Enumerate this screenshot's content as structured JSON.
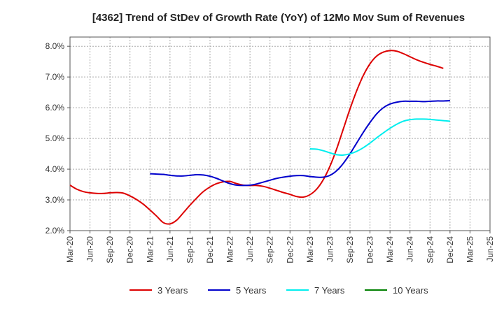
{
  "chart_data": {
    "type": "line",
    "title": "[4362]  Trend of StDev of Growth Rate (YoY) of 12Mo Mov Sum of Revenues",
    "xlabel": "",
    "ylabel": "",
    "ylim": [
      2.0,
      8.3
    ],
    "y_ticks": [
      2.0,
      3.0,
      4.0,
      5.0,
      6.0,
      7.0,
      8.0
    ],
    "y_tick_labels": [
      "2.0%",
      "3.0%",
      "4.0%",
      "5.0%",
      "6.0%",
      "7.0%",
      "8.0%"
    ],
    "x_ticks": [
      "Mar-20",
      "Jun-20",
      "Sep-20",
      "Dec-20",
      "Mar-21",
      "Jun-21",
      "Sep-21",
      "Dec-21",
      "Mar-22",
      "Jun-22",
      "Sep-22",
      "Dec-22",
      "Mar-23",
      "Jun-23",
      "Sep-23",
      "Dec-23",
      "Mar-24",
      "Jun-24",
      "Sep-24",
      "Dec-24",
      "Mar-25",
      "Jun-25"
    ],
    "grid": true,
    "legend_position": "bottom",
    "series": [
      {
        "name": "3 Years",
        "color": "#dd0000",
        "start_index": 0,
        "values": [
          3.48,
          3.35,
          3.27,
          3.23,
          3.21,
          3.21,
          3.23,
          3.24,
          3.22,
          3.13,
          3.01,
          2.86,
          2.67,
          2.47,
          2.26,
          2.22,
          2.34,
          2.58,
          2.83,
          3.06,
          3.27,
          3.42,
          3.53,
          3.59,
          3.6,
          3.53,
          3.48,
          3.47,
          3.47,
          3.44,
          3.38,
          3.31,
          3.24,
          3.18,
          3.11,
          3.09,
          3.17,
          3.35,
          3.66,
          4.1,
          4.66,
          5.31,
          5.96,
          6.55,
          7.05,
          7.43,
          7.68,
          7.81,
          7.86,
          7.84,
          7.76,
          7.66,
          7.56,
          7.48,
          7.41,
          7.35,
          7.28
        ]
      },
      {
        "name": "5 Years",
        "color": "#0000cc",
        "start_index": 12,
        "values": [
          3.85,
          3.84,
          3.83,
          3.8,
          3.78,
          3.78,
          3.8,
          3.82,
          3.81,
          3.77,
          3.7,
          3.61,
          3.53,
          3.48,
          3.47,
          3.48,
          3.52,
          3.58,
          3.64,
          3.7,
          3.74,
          3.77,
          3.79,
          3.79,
          3.76,
          3.74,
          3.74,
          3.8,
          3.95,
          4.19,
          4.5,
          4.85,
          5.2,
          5.52,
          5.8,
          6.0,
          6.12,
          6.18,
          6.21,
          6.21,
          6.21,
          6.2,
          6.21,
          6.22,
          6.22,
          6.23
        ]
      },
      {
        "name": "7 Years",
        "color": "#00eeee",
        "start_index": 36,
        "values": [
          4.66,
          4.65,
          4.6,
          4.53,
          4.47,
          4.46,
          4.5,
          4.58,
          4.7,
          4.85,
          5.02,
          5.18,
          5.33,
          5.46,
          5.56,
          5.61,
          5.63,
          5.63,
          5.62,
          5.6,
          5.58,
          5.56
        ]
      },
      {
        "name": "10 Years",
        "color": "#008000",
        "start_index": 0,
        "values": []
      }
    ]
  }
}
